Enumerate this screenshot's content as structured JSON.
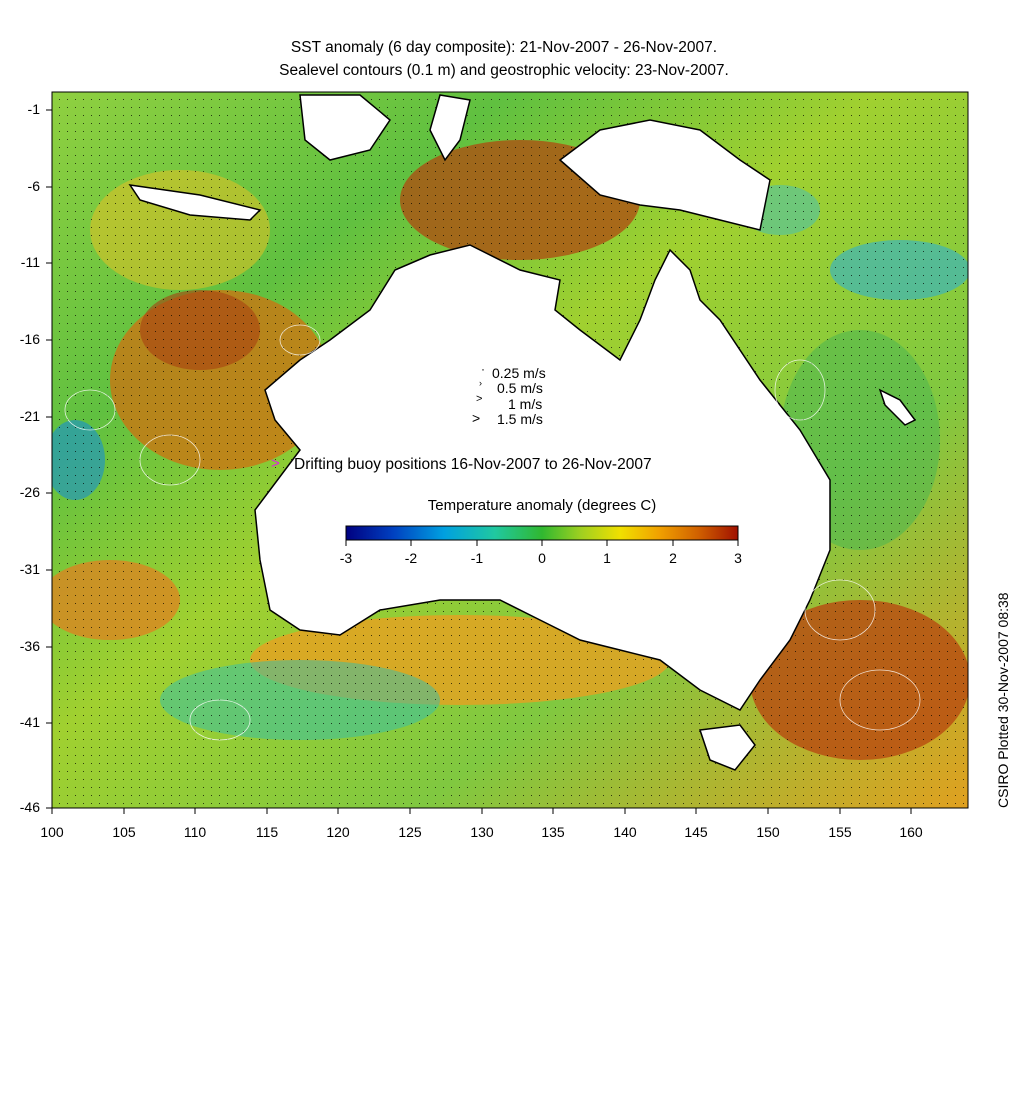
{
  "title": {
    "line1": "SST anomaly (6 day composite): 21-Nov-2007 - 26-Nov-2007.",
    "line2": "Sealevel contours (0.1 m) and geostrophic velocity: 23-Nov-2007."
  },
  "axes": {
    "y_ticks": [
      "-1",
      "-6",
      "-11",
      "-16",
      "-21",
      "-26",
      "-31",
      "-36",
      "-41",
      "-46"
    ],
    "x_ticks": [
      "100",
      "105",
      "110",
      "115",
      "120",
      "125",
      "130",
      "135",
      "140",
      "145",
      "150",
      "155",
      "160"
    ],
    "lon_range": [
      100,
      164
    ],
    "lat_range": [
      -46,
      1
    ]
  },
  "velocity_legend": [
    {
      "label": "0.25 m/s"
    },
    {
      "label": "0.5 m/s"
    },
    {
      "label": "1 m/s"
    },
    {
      "label": "1.5 m/s"
    }
  ],
  "buoy_legend": {
    "marker": ">",
    "label": "Drifting buoy positions 16-Nov-2007 to 26-Nov-2007",
    "color": "#e020e0"
  },
  "colorbar": {
    "title": "Temperature anomaly (degrees C)",
    "ticks": [
      "-3",
      "-2",
      "-1",
      "0",
      "1",
      "2",
      "3"
    ],
    "range": [
      -3,
      3
    ],
    "colors": [
      "#000080",
      "#0040c0",
      "#00a0e0",
      "#20c8a0",
      "#30b830",
      "#a0d020",
      "#f0e000",
      "#f0a000",
      "#d06000",
      "#a01000"
    ]
  },
  "credit": "CSIRO Plotted 30-Nov-2007 08:38"
}
